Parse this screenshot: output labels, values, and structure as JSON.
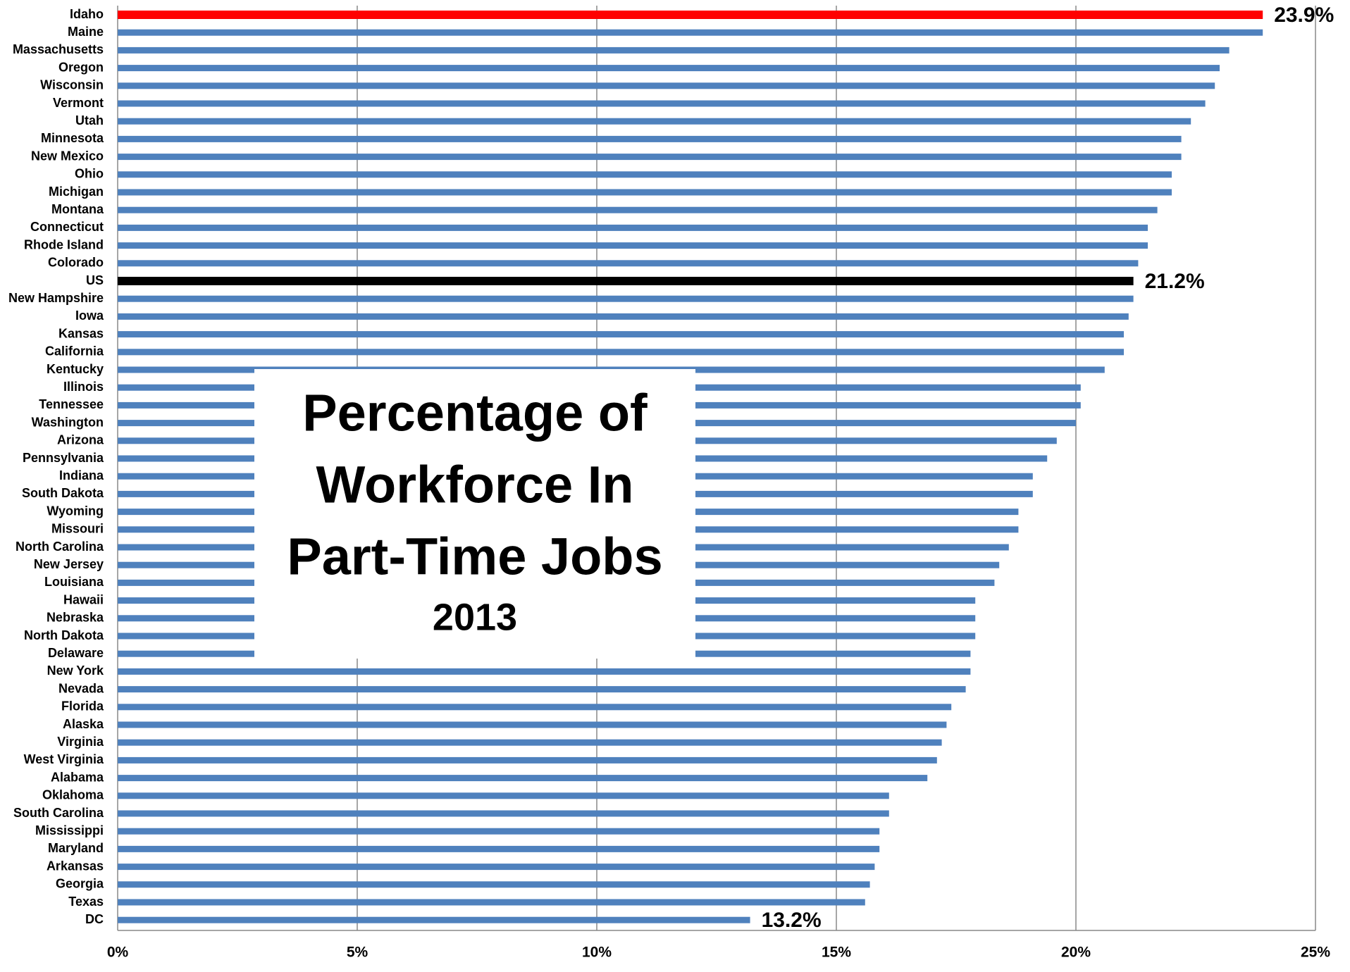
{
  "chart_data": {
    "type": "bar",
    "orientation": "horizontal",
    "title": [
      "Percentage of",
      "Workforce In",
      "Part-Time Jobs"
    ],
    "subtitle": "2013",
    "categories": [
      "Idaho",
      "Maine",
      "Massachusetts",
      "Oregon",
      "Wisconsin",
      "Vermont",
      "Utah",
      "Minnesota",
      "New Mexico",
      "Ohio",
      "Michigan",
      "Montana",
      "Connecticut",
      "Rhode Island",
      "Colorado",
      "US",
      "New Hampshire",
      "Iowa",
      "Kansas",
      "California",
      "Kentucky",
      "Illinois",
      "Tennessee",
      "Washington",
      "Arizona",
      "Pennsylvania",
      "Indiana",
      "South Dakota",
      "Wyoming",
      "Missouri",
      "North Carolina",
      "New Jersey",
      "Louisiana",
      "Hawaii",
      "Nebraska",
      "North Dakota",
      "Delaware",
      "New York",
      "Nevada",
      "Florida",
      "Alaska",
      "Virginia",
      "West Virginia",
      "Alabama",
      "Oklahoma",
      "South Carolina",
      "Mississippi",
      "Maryland",
      "Arkansas",
      "Georgia",
      "Texas",
      "DC"
    ],
    "values": [
      23.9,
      23.9,
      23.2,
      23.0,
      22.9,
      22.7,
      22.4,
      22.2,
      22.2,
      22.0,
      22.0,
      21.7,
      21.5,
      21.5,
      21.3,
      21.2,
      21.2,
      21.1,
      21.0,
      21.0,
      20.6,
      20.1,
      20.1,
      20.0,
      19.6,
      19.4,
      19.1,
      19.1,
      18.8,
      18.8,
      18.6,
      18.4,
      18.3,
      17.9,
      17.9,
      17.9,
      17.8,
      17.8,
      17.7,
      17.4,
      17.3,
      17.2,
      17.1,
      16.9,
      16.1,
      16.1,
      15.9,
      15.9,
      15.8,
      15.7,
      15.6,
      13.2
    ],
    "value_labels": [
      "23.9%",
      null,
      null,
      null,
      null,
      null,
      null,
      null,
      null,
      null,
      null,
      null,
      null,
      null,
      null,
      "21.2%",
      null,
      null,
      null,
      null,
      null,
      null,
      null,
      null,
      null,
      null,
      null,
      null,
      null,
      null,
      null,
      null,
      null,
      null,
      null,
      null,
      null,
      null,
      null,
      null,
      null,
      null,
      null,
      null,
      null,
      null,
      null,
      null,
      null,
      null,
      null,
      "13.2%"
    ],
    "color": "#4f81bd",
    "colors": {
      "Idaho": "#ff0000",
      "US": "#000000"
    },
    "xlim": [
      0,
      25
    ],
    "xticks": [
      {
        "value": 0,
        "label": "0%"
      },
      {
        "value": 5,
        "label": "5%"
      },
      {
        "value": 10,
        "label": "10%"
      },
      {
        "value": 15,
        "label": "15%"
      },
      {
        "value": 20,
        "label": "20%"
      },
      {
        "value": 25,
        "label": "25%"
      }
    ],
    "grid": true
  }
}
